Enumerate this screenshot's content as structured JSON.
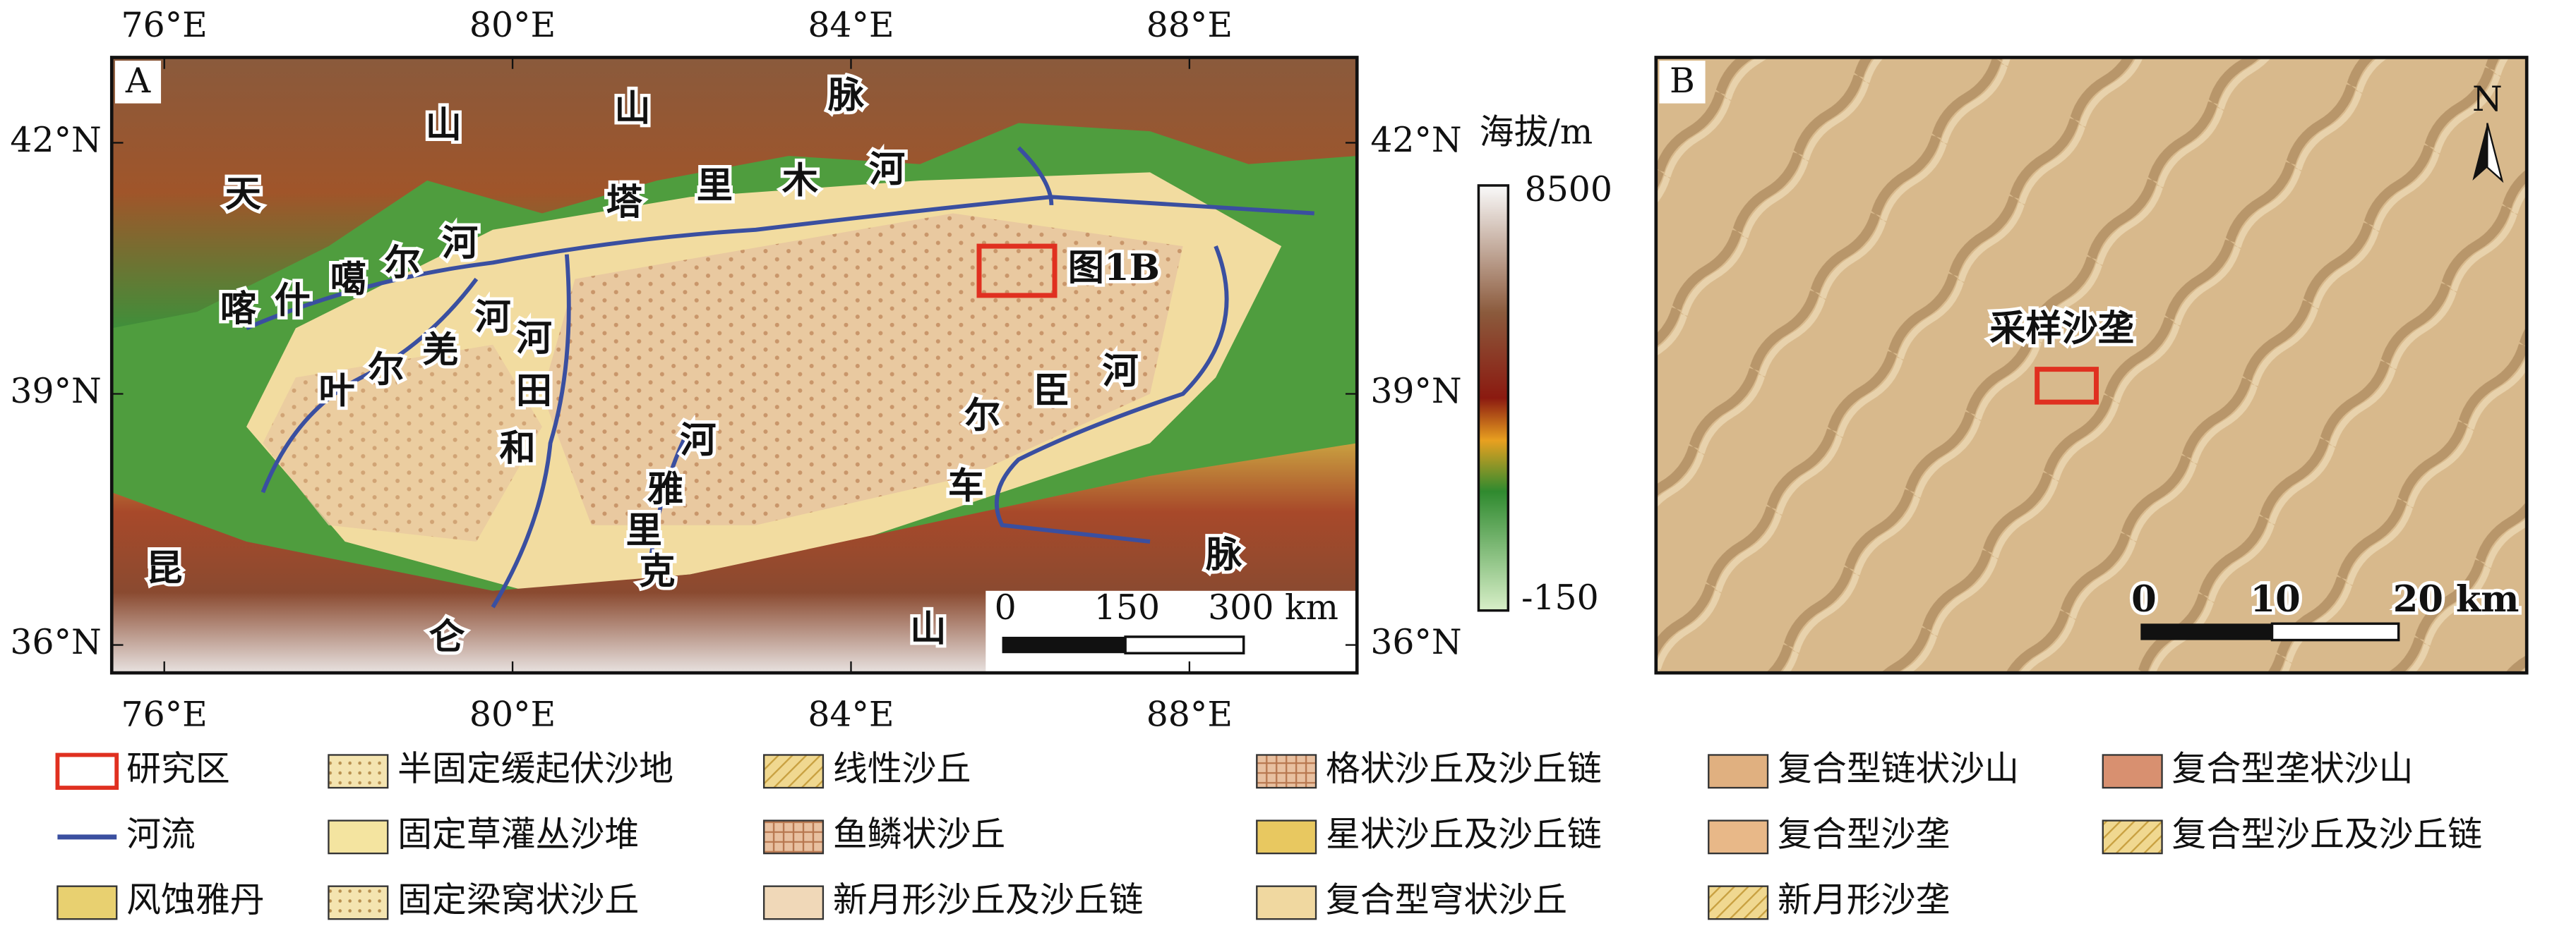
{
  "panel_a": {
    "label": "A",
    "lon_ticks": [
      "76°E",
      "80°E",
      "84°E",
      "88°E"
    ],
    "lat_ticks": [
      "42°N",
      "39°N",
      "36°N"
    ],
    "place_labels": [
      "天",
      "山",
      "山",
      "脉",
      "塔",
      "里",
      "木",
      "河",
      "喀",
      "什",
      "噶",
      "尔",
      "河",
      "叶",
      "尔",
      "羌",
      "河",
      "河",
      "田",
      "和",
      "河",
      "雅",
      "里",
      "克",
      "尔",
      "臣",
      "河",
      "车",
      "昆",
      "仑",
      "山",
      "脉"
    ],
    "study_area_label": "图1B",
    "scale_bar": [
      "0",
      "150",
      "300 km"
    ]
  },
  "elevation_legend": {
    "title": "海拔/m",
    "max": 8500,
    "min": -150
  },
  "panel_b": {
    "label": "B",
    "north": "N",
    "sample_label": "采样沙垄",
    "scale_bar": [
      "0",
      "10",
      "20 km"
    ]
  },
  "legend": {
    "items": [
      "研究区",
      "半固定缓起伏沙地",
      "线性沙丘",
      "格状沙丘及沙丘链",
      "复合型链状沙山",
      "复合型垄状沙山",
      "河流",
      "固定草灌丛沙堆",
      "鱼鳞状沙丘",
      "星状沙丘及沙丘链",
      "复合型沙垄",
      "复合型沙丘及沙丘链",
      "风蚀雅丹",
      "固定梁窝状沙丘",
      "新月形沙丘及沙丘链",
      "复合型穹状沙丘",
      "新月形沙垄"
    ]
  }
}
